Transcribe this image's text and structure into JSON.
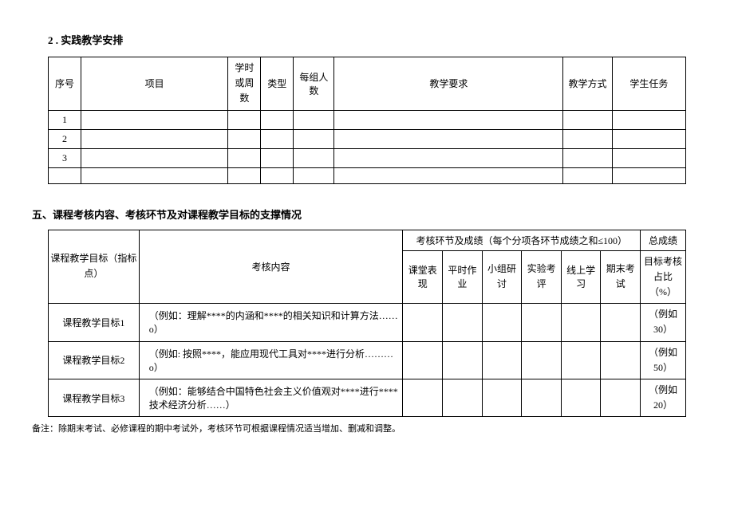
{
  "section2": {
    "heading": "2 . 实践教学安排",
    "headers": {
      "seq": "序号",
      "project": "项目",
      "hours": "学时或周数",
      "type": "类型",
      "groupNum": "每组人数",
      "requirement": "教学要求",
      "method": "教学方式",
      "task": "学生任务"
    },
    "rows": [
      {
        "seq": "1"
      },
      {
        "seq": "2"
      },
      {
        "seq": "3"
      },
      {
        "seq": ""
      }
    ]
  },
  "section5": {
    "heading": "五、课程考核内容、考核环节及对课程教学目标的支撑情况",
    "headers": {
      "goal": "课程教学目标（指标点）",
      "content": "考核内容",
      "assessGroup": "考核环节及成绩（每个分项各环节成绩之和≤100）",
      "total": "总成绩",
      "sub1": "课堂表现",
      "sub2": "平时作业",
      "sub3": "小组研讨",
      "sub4": "实验考评",
      "sub5": "线上学习",
      "sub6": "期末考试",
      "totalSub": "目标考核占比（%）"
    },
    "rows": [
      {
        "goal": "课程教学目标1",
        "content": "（例如：理解****的内涵和****的相关知识和计算方法……o）",
        "total": "（例如30）"
      },
      {
        "goal": "课程教学目标2",
        "content": "（例如: 按照****，能应用现代工具对****进行分析………o）",
        "total": "（例如50）"
      },
      {
        "goal": "课程教学目标3",
        "content": "（例如：能够结合中国特色社会主义价值观对****进行****技术经济分析……）",
        "total": "（例如20）"
      }
    ],
    "note": "备注：除期末考试、必修课程的期中考试外，考核环节可根据课程情况适当增加、删减和调整。"
  }
}
